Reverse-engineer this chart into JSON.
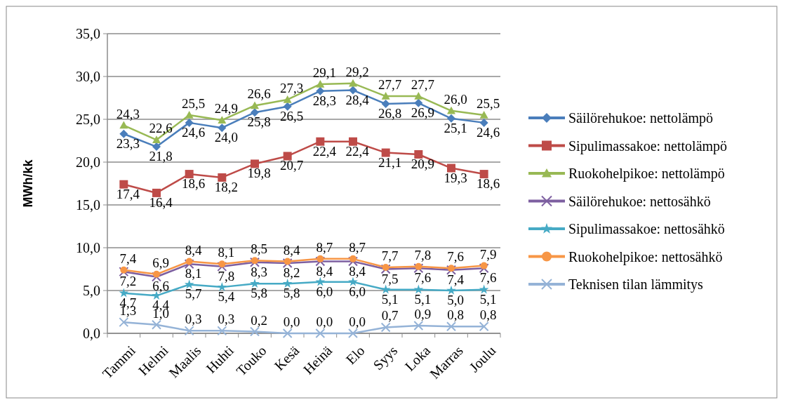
{
  "chart_data": {
    "type": "line",
    "ylabel": "MWh/kk",
    "categories": [
      "Tammi",
      "Helmi",
      "Maalis",
      "Huhti",
      "Touko",
      "Kesä",
      "Heinä",
      "Elo",
      "Syys",
      "Loka",
      "Marras",
      "Joulu"
    ],
    "ylim": [
      0,
      35
    ],
    "yticks": [
      {
        "value": 0,
        "label": "0,0"
      },
      {
        "value": 5,
        "label": "5,0"
      },
      {
        "value": 10,
        "label": "10,0"
      },
      {
        "value": 15,
        "label": "15,0"
      },
      {
        "value": 20,
        "label": "20,0"
      },
      {
        "value": 25,
        "label": "25,0"
      },
      {
        "value": 30,
        "label": "30,0"
      },
      {
        "value": 35,
        "label": "35,0"
      }
    ],
    "grid": "y",
    "legend": "right",
    "series": [
      {
        "name": "Säilörehukoe: nettolämpö",
        "color": "#4a7ebb",
        "marker": "diamond",
        "values": [
          23.3,
          21.8,
          24.6,
          24.0,
          25.8,
          26.5,
          28.3,
          28.4,
          26.8,
          26.9,
          25.1,
          24.6
        ],
        "value_labels": [
          "23,3",
          "21,8",
          "24,6",
          "24,0",
          "25,8",
          "26,5",
          "28,3",
          "28,4",
          "26,8",
          "26,9",
          "25,1",
          "24,6"
        ]
      },
      {
        "name": "Sipulimassakoe: nettolämpö",
        "color": "#be4b48",
        "marker": "square",
        "values": [
          17.4,
          16.4,
          18.6,
          18.2,
          19.8,
          20.7,
          22.4,
          22.4,
          21.1,
          20.9,
          19.3,
          18.6
        ],
        "value_labels": [
          "17,4",
          "16,4",
          "18,6",
          "18,2",
          "19,8",
          "20,7",
          "22,4",
          "22,4",
          "21,1",
          "20,9",
          "19,3",
          "18,6"
        ]
      },
      {
        "name": "Ruokohelpikoe: nettolämpö",
        "color": "#98b954",
        "marker": "triangle",
        "values": [
          24.3,
          22.6,
          25.5,
          24.9,
          26.6,
          27.3,
          29.1,
          29.2,
          27.7,
          27.7,
          26.0,
          25.5
        ],
        "value_labels": [
          "24,3",
          "22,6",
          "25,5",
          "24,9",
          "26,6",
          "27,3",
          "29,1",
          "29,2",
          "27,7",
          "27,7",
          "26,0",
          "25,5"
        ]
      },
      {
        "name": "Säilörehukoe: nettosähkö",
        "color": "#7d5fa0",
        "marker": "cross",
        "values": [
          7.2,
          6.6,
          8.1,
          7.8,
          8.3,
          8.2,
          8.4,
          8.4,
          7.5,
          7.6,
          7.4,
          7.6
        ],
        "value_labels": [
          "7,2",
          "6,6",
          "8,1",
          "7,8",
          "8,3",
          "8,2",
          "8,4",
          "8,4",
          "7,5",
          "7,6",
          "7,4",
          "7,6"
        ]
      },
      {
        "name": "Sipulimassakoe: nettosähkö",
        "color": "#46aac5",
        "marker": "star",
        "values": [
          4.7,
          4.4,
          5.7,
          5.4,
          5.8,
          5.8,
          6.0,
          6.0,
          5.1,
          5.1,
          5.0,
          5.1
        ],
        "value_labels": [
          "4,7",
          "4,4",
          "5,7",
          "5,4",
          "5,8",
          "5,8",
          "6,0",
          "6,0",
          "5,1",
          "5,1",
          "5,0",
          "5,1"
        ]
      },
      {
        "name": "Ruokohelpikoe: nettosähkö",
        "color": "#f79646",
        "marker": "circle",
        "values": [
          7.4,
          6.9,
          8.4,
          8.1,
          8.5,
          8.4,
          8.7,
          8.7,
          7.7,
          7.8,
          7.6,
          7.9
        ],
        "value_labels": [
          "7,4",
          "6,9",
          "8,4",
          "8,1",
          "8,5",
          "8,4",
          "8,7",
          "8,7",
          "7,7",
          "7,8",
          "7,6",
          "7,9"
        ]
      },
      {
        "name": "Teknisen tilan lämmitys",
        "color": "#95b3d7",
        "marker": "cross",
        "values": [
          1.3,
          1.0,
          0.3,
          0.3,
          0.2,
          0.0,
          0.0,
          0.0,
          0.7,
          0.9,
          0.8,
          0.8
        ],
        "value_labels": [
          "1,3",
          "1,0",
          "0,3",
          "0,3",
          "0,2",
          "0,0",
          "0,0",
          "0,0",
          "0,7",
          "0,9",
          "0,8",
          "0,8"
        ]
      }
    ]
  }
}
